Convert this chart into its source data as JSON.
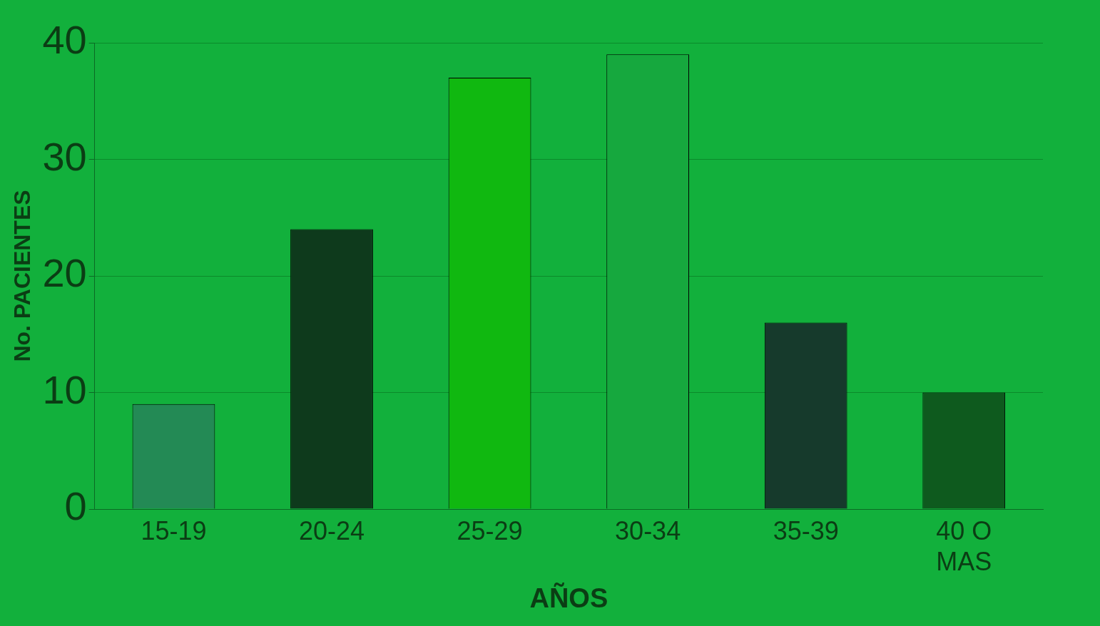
{
  "chart_data": {
    "type": "bar",
    "xlabel": "AÑOS",
    "ylabel": "No. PACIENTES",
    "categories": [
      "15-19",
      "20-24",
      "25-29",
      "30-34",
      "35-39",
      "40 O MAS"
    ],
    "values": [
      9,
      24,
      37,
      39,
      16,
      10
    ],
    "colors": [
      "#238a55",
      "#0e3a1c",
      "#10b810",
      "#16a83e",
      "#163a2c",
      "#0e5a1e"
    ],
    "ylim": [
      0,
      40
    ],
    "yticks": [
      0,
      10,
      20,
      30,
      40
    ],
    "grid": "y",
    "legend": false
  }
}
